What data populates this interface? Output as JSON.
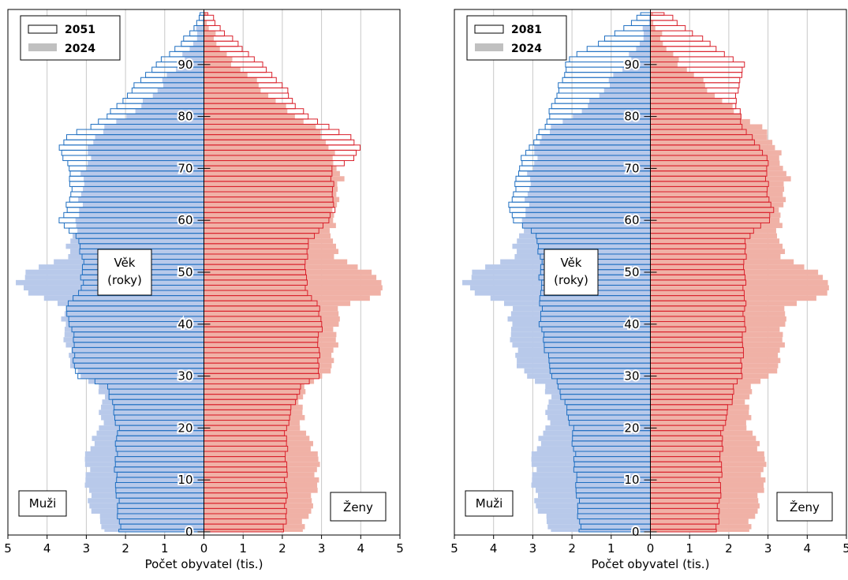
{
  "chart_data": [
    {
      "type": "population_pyramid",
      "outline_year": "2051",
      "filled_year": "2024",
      "xlabel": "Počet obyvatel (tis.)",
      "x_ticks": [
        "5",
        "4",
        "3",
        "2",
        "1",
        "0",
        "1",
        "2",
        "3",
        "4",
        "5"
      ],
      "xlim": [
        -5,
        5
      ],
      "age_ticks": [
        "0",
        "10",
        "20",
        "30",
        "40",
        "50",
        "60",
        "70",
        "80",
        "90"
      ],
      "age_range": [
        0,
        100
      ],
      "age_box": [
        "Věk",
        "(roky)"
      ],
      "male_label": "Muži",
      "female_label": "Ženy",
      "knots_age": [
        0,
        5,
        10,
        15,
        20,
        25,
        28,
        30,
        33,
        36,
        40,
        43,
        46,
        48,
        50,
        53,
        56,
        58,
        60,
        62,
        65,
        68,
        70,
        72,
        74,
        76,
        78,
        80,
        82,
        85,
        88,
        90,
        92,
        94,
        96,
        98,
        100
      ],
      "outline_male": [
        2.15,
        2.2,
        2.25,
        2.25,
        2.2,
        2.35,
        2.45,
        3.2,
        3.35,
        3.3,
        3.4,
        3.55,
        3.2,
        3.1,
        3.1,
        3.1,
        3.2,
        3.4,
        3.7,
        3.5,
        3.4,
        3.4,
        3.45,
        3.55,
        3.7,
        3.5,
        2.9,
        2.5,
        2.2,
        1.85,
        1.5,
        1.2,
        0.9,
        0.6,
        0.35,
        0.2,
        0.05
      ],
      "outline_female": [
        2.05,
        2.1,
        2.1,
        2.1,
        2.1,
        2.3,
        2.5,
        2.9,
        2.95,
        2.9,
        3.0,
        2.95,
        2.65,
        2.6,
        2.6,
        2.6,
        2.7,
        2.9,
        3.2,
        3.3,
        3.3,
        3.25,
        3.3,
        3.8,
        4.0,
        3.7,
        3.2,
        2.65,
        2.35,
        2.1,
        1.75,
        1.45,
        1.15,
        0.85,
        0.55,
        0.3,
        0.1
      ],
      "filled_male": [
        2.5,
        2.9,
        3.0,
        3.0,
        2.65,
        2.6,
        2.65,
        3.2,
        3.4,
        3.5,
        3.6,
        3.5,
        4.4,
        4.8,
        4.5,
        3.5,
        3.4,
        3.3,
        3.2,
        3.2,
        3.1,
        3.1,
        3.0,
        2.95,
        2.9,
        2.8,
        2.45,
        2.0,
        1.6,
        1.2,
        0.9,
        0.6,
        0.45,
        0.3,
        0.15,
        0.08,
        0.02
      ],
      "filled_female": [
        2.5,
        2.75,
        2.9,
        2.9,
        2.5,
        2.5,
        2.55,
        3.1,
        3.3,
        3.35,
        3.4,
        3.45,
        4.5,
        4.6,
        4.2,
        3.4,
        3.3,
        3.25,
        3.3,
        3.35,
        3.4,
        3.5,
        3.4,
        3.3,
        3.2,
        3.05,
        2.8,
        2.35,
        2.0,
        1.5,
        1.15,
        0.75,
        0.55,
        0.35,
        0.2,
        0.1,
        0.03
      ],
      "colors": {
        "male_line": "#1f6fc1",
        "female_line": "#d9202b",
        "male_fill": "#b8c9ea",
        "female_fill": "#f0b1a6",
        "grid": "#c8c8c8"
      }
    },
    {
      "type": "population_pyramid",
      "outline_year": "2081",
      "filled_year": "2024",
      "xlabel": "Počet obyvatel (tis.)",
      "x_ticks": [
        "5",
        "4",
        "3",
        "2",
        "1",
        "0",
        "1",
        "2",
        "3",
        "4",
        "5"
      ],
      "xlim": [
        -5,
        5
      ],
      "age_ticks": [
        "0",
        "10",
        "20",
        "30",
        "40",
        "50",
        "60",
        "70",
        "80",
        "90"
      ],
      "age_range": [
        0,
        100
      ],
      "age_box": [
        "Věk",
        "(roky)"
      ],
      "male_label": "Muži",
      "female_label": "Ženy",
      "knots_age": [
        0,
        5,
        10,
        15,
        20,
        25,
        28,
        30,
        33,
        36,
        40,
        43,
        46,
        48,
        50,
        53,
        56,
        58,
        60,
        62,
        65,
        68,
        70,
        72,
        74,
        76,
        78,
        80,
        82,
        85,
        88,
        90,
        92,
        94,
        96,
        98,
        100
      ],
      "outline_male": [
        1.8,
        1.85,
        1.9,
        1.95,
        2.0,
        2.2,
        2.35,
        2.5,
        2.6,
        2.7,
        2.8,
        2.8,
        2.8,
        2.8,
        2.8,
        2.8,
        2.9,
        3.0,
        3.5,
        3.6,
        3.5,
        3.4,
        3.35,
        3.25,
        3.1,
        2.9,
        2.7,
        2.6,
        2.5,
        2.35,
        2.2,
        2.15,
        1.9,
        1.35,
        0.9,
        0.5,
        0.2
      ],
      "outline_female": [
        1.7,
        1.75,
        1.8,
        1.8,
        1.85,
        2.05,
        2.15,
        2.3,
        2.35,
        2.35,
        2.4,
        2.4,
        2.4,
        2.4,
        2.4,
        2.4,
        2.45,
        2.6,
        3.05,
        3.1,
        3.0,
        2.95,
        3.0,
        2.95,
        2.8,
        2.55,
        2.35,
        2.3,
        2.2,
        2.2,
        2.35,
        2.35,
        1.9,
        1.5,
        1.1,
        0.7,
        0.35
      ],
      "filled_male": [
        2.5,
        2.9,
        3.0,
        3.0,
        2.65,
        2.6,
        2.65,
        3.2,
        3.4,
        3.5,
        3.6,
        3.5,
        4.4,
        4.8,
        4.5,
        3.5,
        3.4,
        3.3,
        3.2,
        3.2,
        3.1,
        3.1,
        3.0,
        2.95,
        2.9,
        2.8,
        2.45,
        2.0,
        1.6,
        1.2,
        0.9,
        0.6,
        0.45,
        0.3,
        0.15,
        0.08,
        0.02
      ],
      "filled_female": [
        2.5,
        2.75,
        2.9,
        2.9,
        2.5,
        2.5,
        2.55,
        3.1,
        3.3,
        3.35,
        3.4,
        3.45,
        4.5,
        4.6,
        4.2,
        3.4,
        3.3,
        3.25,
        3.3,
        3.35,
        3.4,
        3.5,
        3.4,
        3.3,
        3.2,
        3.05,
        2.8,
        2.35,
        2.0,
        1.5,
        1.15,
        0.75,
        0.55,
        0.35,
        0.2,
        0.1,
        0.03
      ],
      "colors": {
        "male_line": "#1f6fc1",
        "female_line": "#d9202b",
        "male_fill": "#b8c9ea",
        "female_fill": "#f0b1a6",
        "grid": "#c8c8c8"
      }
    }
  ]
}
